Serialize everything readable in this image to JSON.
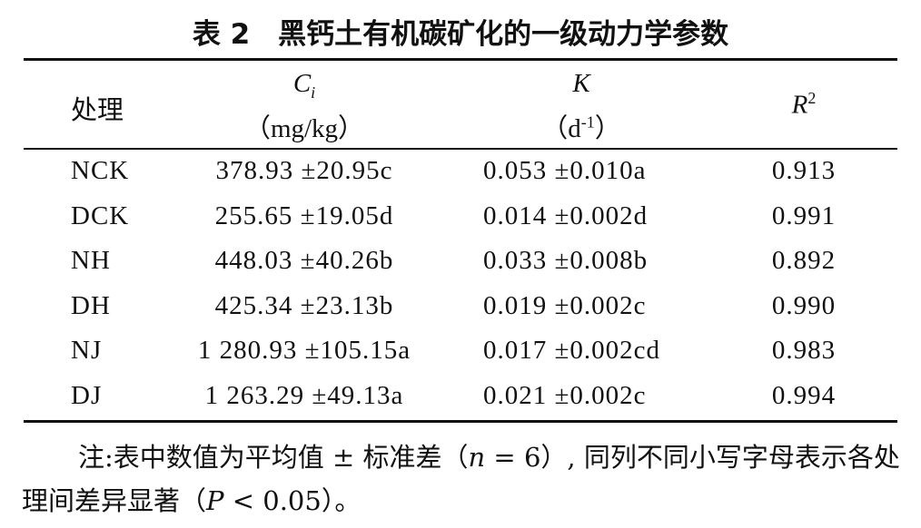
{
  "title": "表 2　黑钙土有机碳矿化的一级动力学参数",
  "table": {
    "header": [
      {
        "text": "处理"
      },
      {
        "symbol": "C",
        "subscript": "i",
        "unit": "（mg/kg）"
      },
      {
        "symbol": "K",
        "unit_before": "（d",
        "unit_sup": "-1",
        "unit_after": "）"
      },
      {
        "symbol": "R",
        "superscript": "2"
      }
    ],
    "rows": [
      [
        "NCK",
        "378.93 ±20.95c",
        "0.053 ±0.010a",
        "0.913"
      ],
      [
        "DCK",
        "255.65 ±19.05d",
        "0.014 ±0.002d",
        "0.991"
      ],
      [
        "NH",
        "448.03 ±40.26b",
        "0.033 ±0.008b",
        "0.892"
      ],
      [
        "DH",
        "425.34 ±23.13b",
        "0.019 ±0.002c",
        "0.990"
      ],
      [
        "NJ",
        "1 280.93 ±105.15a",
        "0.017 ±0.002cd",
        "0.983"
      ],
      [
        "DJ",
        "1 263.29 ±49.13a",
        "0.021 ±0.002c",
        "0.994"
      ]
    ]
  },
  "note": [
    "注:表中数值为平均值 ± 标准差（",
    "n",
    " = 6）, 同列不同小写字母表示各处理间差异显著（",
    "P",
    " < 0.05）。"
  ]
}
